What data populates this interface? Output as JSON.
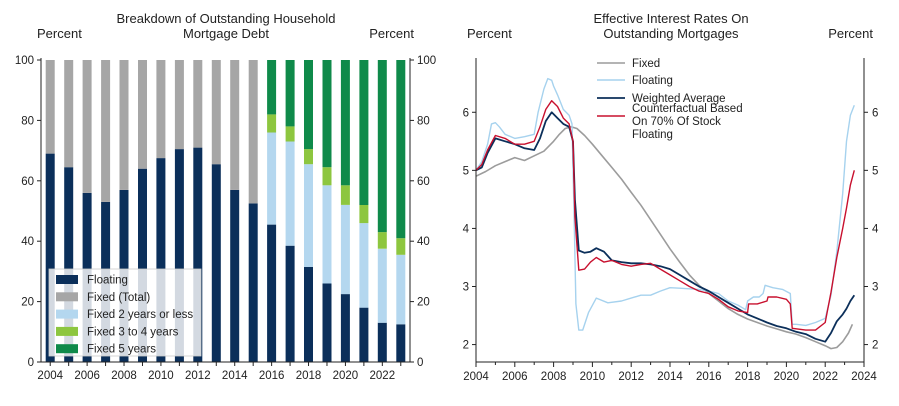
{
  "chart_data": [
    {
      "type": "bar",
      "stacked": true,
      "title": "Breakdown of Outstanding Household Mortgage Debt",
      "title_lines": [
        "Breakdown of Outstanding Household",
        "Mortgage Debt"
      ],
      "ylabel_left": "Percent",
      "ylabel_right": "Percent",
      "ylim": [
        0,
        100
      ],
      "yticks": [
        0,
        20,
        40,
        60,
        80,
        100
      ],
      "xticks": [
        "2004",
        "2006",
        "2008",
        "2010",
        "2012",
        "2014",
        "2016",
        "2018",
        "2020",
        "2022"
      ],
      "categories": [
        "2004",
        "2005",
        "2006",
        "2007",
        "2008",
        "2009",
        "2010",
        "2011",
        "2012",
        "2013",
        "2014",
        "2015",
        "2016",
        "2017",
        "2018",
        "2019",
        "2020",
        "2021",
        "2022",
        "2023"
      ],
      "legend_position": "bottom-left",
      "series": [
        {
          "name": "Floating",
          "color": "#0b2f5a",
          "values": [
            69,
            64.5,
            56,
            53,
            57,
            64,
            67.5,
            70.5,
            71,
            65.5,
            57,
            52.5,
            45.5,
            38.5,
            31.5,
            26,
            22.5,
            18,
            13,
            12.5
          ]
        },
        {
          "name": "Fixed (Total)",
          "color": "#a6a6a6",
          "values": [
            31,
            35.5,
            44,
            47,
            43,
            36,
            32.5,
            29.5,
            29,
            34.5,
            43,
            47.5,
            null,
            null,
            null,
            null,
            null,
            null,
            null,
            null
          ]
        },
        {
          "name": "Fixed 2 years or less",
          "color": "#b4d7ef",
          "values": [
            null,
            null,
            null,
            null,
            null,
            null,
            null,
            null,
            null,
            null,
            null,
            null,
            30.5,
            34.5,
            34,
            32.5,
            29.5,
            28,
            24.5,
            23
          ]
        },
        {
          "name": "Fixed 3 to 4 years",
          "color": "#8dc63f",
          "values": [
            null,
            null,
            null,
            null,
            null,
            null,
            null,
            null,
            null,
            null,
            null,
            null,
            6,
            5,
            5,
            6,
            6.5,
            6,
            5.5,
            5.5
          ]
        },
        {
          "name": "Fixed 5 years",
          "color": "#0f8a4a",
          "values": [
            null,
            null,
            null,
            null,
            null,
            null,
            null,
            null,
            null,
            null,
            null,
            null,
            18,
            22,
            29.5,
            35.5,
            41.5,
            48,
            57,
            59
          ]
        }
      ]
    },
    {
      "type": "line",
      "title": "Effective Interest Rates On Outstanding Mortgages",
      "title_lines": [
        "Effective Interest Rates On",
        "Outstanding Mortgages"
      ],
      "ylabel_left": "Percent",
      "ylabel_right": "Percent",
      "ylim": [
        1.7,
        6.9
      ],
      "yticks": [
        2,
        3,
        4,
        5,
        6
      ],
      "xlim": [
        2004,
        2024
      ],
      "xticks": [
        2004,
        2006,
        2008,
        2010,
        2012,
        2014,
        2016,
        2018,
        2020,
        2022,
        2024
      ],
      "legend_position": "top-center",
      "series": [
        {
          "name": "Fixed",
          "color": "#9c9c9c",
          "width": 1.6,
          "x": [
            2004,
            2004.5,
            2005,
            2005.5,
            2006,
            2006.5,
            2007,
            2007.5,
            2008,
            2008.3,
            2008.6,
            2008.9,
            2009.2,
            2009.6,
            2010,
            2010.5,
            2011,
            2011.5,
            2012,
            2012.5,
            2013,
            2013.5,
            2014,
            2014.5,
            2015,
            2015.5,
            2016,
            2016.5,
            2017,
            2017.5,
            2018,
            2018.5,
            2019,
            2019.5,
            2020,
            2020.5,
            2021,
            2021.5,
            2022,
            2022.3,
            2022.6,
            2022.9,
            2023.2,
            2023.4
          ],
          "y": [
            4.9,
            4.98,
            5.08,
            5.15,
            5.22,
            5.17,
            5.25,
            5.33,
            5.5,
            5.62,
            5.72,
            5.75,
            5.72,
            5.6,
            5.45,
            5.25,
            5.05,
            4.85,
            4.62,
            4.4,
            4.15,
            3.9,
            3.65,
            3.42,
            3.2,
            3.02,
            2.88,
            2.75,
            2.62,
            2.52,
            2.44,
            2.38,
            2.32,
            2.27,
            2.22,
            2.18,
            2.12,
            2.05,
            1.98,
            1.93,
            1.95,
            2.05,
            2.2,
            2.35
          ]
        },
        {
          "name": "Floating",
          "color": "#a6d2ee",
          "width": 1.4,
          "x": [
            2004,
            2004.3,
            2004.6,
            2004.8,
            2005,
            2005.2,
            2005.5,
            2006,
            2006.5,
            2007,
            2007.2,
            2007.5,
            2007.7,
            2007.9,
            2008,
            2008.2,
            2008.5,
            2008.8,
            2008.95,
            2009.05,
            2009.15,
            2009.3,
            2009.5,
            2009.8,
            2010.2,
            2010.8,
            2011.5,
            2012,
            2012.5,
            2013,
            2013.5,
            2014,
            2014.5,
            2015,
            2015.5,
            2016,
            2016.5,
            2017,
            2017.5,
            2017.9,
            2018,
            2018.3,
            2018.6,
            2018.8,
            2018.9,
            2019.3,
            2019.8,
            2020.2,
            2020.3,
            2020.5,
            2021,
            2021.5,
            2022,
            2022.3,
            2022.6,
            2022.9,
            2023.1,
            2023.3,
            2023.5
          ],
          "y": [
            5.0,
            5.15,
            5.45,
            5.8,
            5.82,
            5.75,
            5.62,
            5.55,
            5.58,
            5.62,
            6.0,
            6.4,
            6.58,
            6.55,
            6.45,
            6.3,
            6.05,
            5.95,
            5.8,
            4.3,
            2.7,
            2.25,
            2.25,
            2.55,
            2.8,
            2.72,
            2.75,
            2.8,
            2.85,
            2.85,
            2.92,
            2.98,
            2.97,
            2.96,
            2.95,
            2.92,
            2.88,
            2.75,
            2.68,
            2.6,
            2.75,
            2.82,
            2.82,
            2.88,
            3.02,
            2.98,
            2.95,
            2.88,
            2.35,
            2.35,
            2.33,
            2.38,
            2.45,
            2.85,
            3.6,
            4.6,
            5.5,
            5.95,
            6.12
          ]
        },
        {
          "name": "Weighted Average",
          "color": "#0b2f5a",
          "width": 1.8,
          "x": [
            2004,
            2004.3,
            2004.6,
            2005,
            2005.5,
            2006,
            2006.5,
            2007,
            2007.3,
            2007.6,
            2007.9,
            2008.2,
            2008.5,
            2008.8,
            2009,
            2009.1,
            2009.3,
            2009.6,
            2009.9,
            2010.2,
            2010.6,
            2011,
            2011.5,
            2012,
            2012.5,
            2013,
            2013.5,
            2014,
            2014.5,
            2015,
            2015.5,
            2016,
            2016.5,
            2017,
            2017.5,
            2018,
            2018.5,
            2019,
            2019.5,
            2020,
            2020.5,
            2021,
            2021.5,
            2022,
            2022.3,
            2022.6,
            2022.9,
            2023.1,
            2023.3,
            2023.5
          ],
          "y": [
            5.0,
            5.05,
            5.3,
            5.55,
            5.5,
            5.45,
            5.38,
            5.35,
            5.55,
            5.85,
            6.0,
            5.9,
            5.8,
            5.75,
            5.5,
            4.5,
            3.62,
            3.58,
            3.6,
            3.66,
            3.6,
            3.45,
            3.42,
            3.4,
            3.4,
            3.38,
            3.35,
            3.3,
            3.2,
            3.1,
            3.0,
            2.92,
            2.82,
            2.72,
            2.62,
            2.52,
            2.45,
            2.38,
            2.32,
            2.28,
            2.22,
            2.18,
            2.1,
            2.05,
            2.2,
            2.4,
            2.52,
            2.62,
            2.75,
            2.85
          ]
        },
        {
          "name": "Counterfactual Based On 70% Of Stock Floating",
          "color": "#c8102e",
          "width": 1.4,
          "legend_lines": [
            "Counterfactual Based",
            "On 70% Of Stock",
            "Floating"
          ],
          "x": [
            2004,
            2004.3,
            2004.6,
            2005,
            2005.5,
            2006,
            2006.5,
            2007,
            2007.3,
            2007.6,
            2007.9,
            2008.2,
            2008.5,
            2008.8,
            2009,
            2009.1,
            2009.3,
            2009.6,
            2009.9,
            2010.2,
            2010.6,
            2011,
            2011.5,
            2012,
            2012.5,
            2013,
            2013.5,
            2014,
            2014.5,
            2015,
            2015.5,
            2016,
            2016.5,
            2017,
            2017.5,
            2018,
            2018.05,
            2018.5,
            2019,
            2019.05,
            2019.5,
            2020,
            2020.2,
            2020.3,
            2021,
            2021.5,
            2022,
            2022.3,
            2022.6,
            2022.9,
            2023.1,
            2023.3,
            2023.5
          ],
          "y": [
            5.0,
            5.1,
            5.35,
            5.6,
            5.55,
            5.45,
            5.45,
            5.5,
            5.75,
            6.05,
            6.2,
            6.1,
            5.9,
            5.8,
            5.5,
            4.2,
            3.28,
            3.3,
            3.42,
            3.5,
            3.42,
            3.45,
            3.38,
            3.35,
            3.38,
            3.4,
            3.3,
            3.2,
            3.1,
            3.0,
            2.92,
            2.88,
            2.78,
            2.65,
            2.58,
            2.55,
            2.7,
            2.7,
            2.75,
            2.82,
            2.82,
            2.78,
            2.7,
            2.28,
            2.25,
            2.25,
            2.38,
            2.9,
            3.5,
            4.0,
            4.35,
            4.75,
            5.0
          ]
        }
      ]
    }
  ]
}
